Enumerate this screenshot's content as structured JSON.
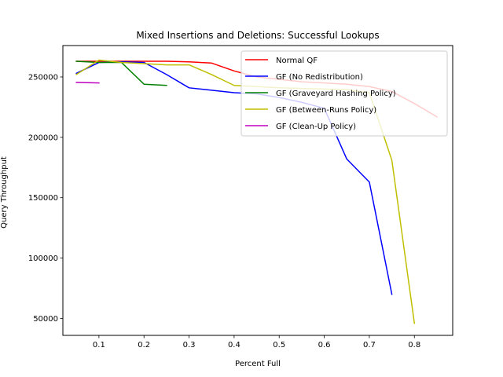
{
  "chart_data": {
    "type": "line",
    "title": "Mixed Insertions and Deletions: Successful Lookups",
    "xlabel": "Percent Full",
    "ylabel": "Query Throughput",
    "xlim": [
      0.02,
      0.885
    ],
    "ylim": [
      36000,
      276000
    ],
    "xticks": [
      0.1,
      0.2,
      0.3,
      0.4,
      0.5,
      0.6,
      0.7,
      0.8
    ],
    "xtick_labels": [
      "0.1",
      "0.2",
      "0.3",
      "0.4",
      "0.5",
      "0.6",
      "0.7",
      "0.8"
    ],
    "yticks": [
      50000,
      100000,
      150000,
      200000,
      250000
    ],
    "ytick_labels": [
      "50000",
      "100000",
      "150000",
      "200000",
      "250000"
    ],
    "grid": false,
    "legend_position": "top-right",
    "series": [
      {
        "name": "Normal QF",
        "color": "#ff0000",
        "x": [
          0.05,
          0.1,
          0.15,
          0.2,
          0.25,
          0.3,
          0.35,
          0.4,
          0.45,
          0.5,
          0.55,
          0.6,
          0.65,
          0.7,
          0.75,
          0.8,
          0.85
        ],
        "y": [
          263000,
          263000,
          263000,
          263000,
          263000,
          262500,
          261500,
          255000,
          250000,
          248000,
          246000,
          245000,
          244000,
          242000,
          238000,
          228000,
          217000
        ]
      },
      {
        "name": "GF (No Redistribution)",
        "color": "#0000ff",
        "x": [
          0.05,
          0.1,
          0.15,
          0.2,
          0.25,
          0.3,
          0.35,
          0.4,
          0.45,
          0.5,
          0.55,
          0.6,
          0.65,
          0.7,
          0.75
        ],
        "y": [
          253000,
          262000,
          262500,
          262000,
          252000,
          241000,
          239000,
          237000,
          236000,
          233000,
          229000,
          224000,
          182000,
          163000,
          70000
        ]
      },
      {
        "name": "GF (Graveyard Hashing Policy)",
        "color": "#008000",
        "x": [
          0.05,
          0.1,
          0.15,
          0.2,
          0.25
        ],
        "y": [
          263000,
          262000,
          262000,
          244000,
          243000
        ]
      },
      {
        "name": "GF (Between-Runs Policy)",
        "color": "#bfbf00",
        "x": [
          0.05,
          0.1,
          0.15,
          0.2,
          0.25,
          0.3,
          0.35,
          0.4,
          0.45,
          0.5,
          0.55,
          0.6,
          0.65,
          0.7,
          0.75,
          0.8
        ],
        "y": [
          252000,
          264000,
          262000,
          261000,
          260000,
          260000,
          252000,
          243000,
          242000,
          241000,
          240500,
          240000,
          239500,
          237000,
          181000,
          46000
        ]
      },
      {
        "name": "GF (Clean-Up Policy)",
        "color": "#bf00bf",
        "x": [
          0.05,
          0.1
        ],
        "y": [
          245500,
          245000
        ]
      }
    ]
  }
}
